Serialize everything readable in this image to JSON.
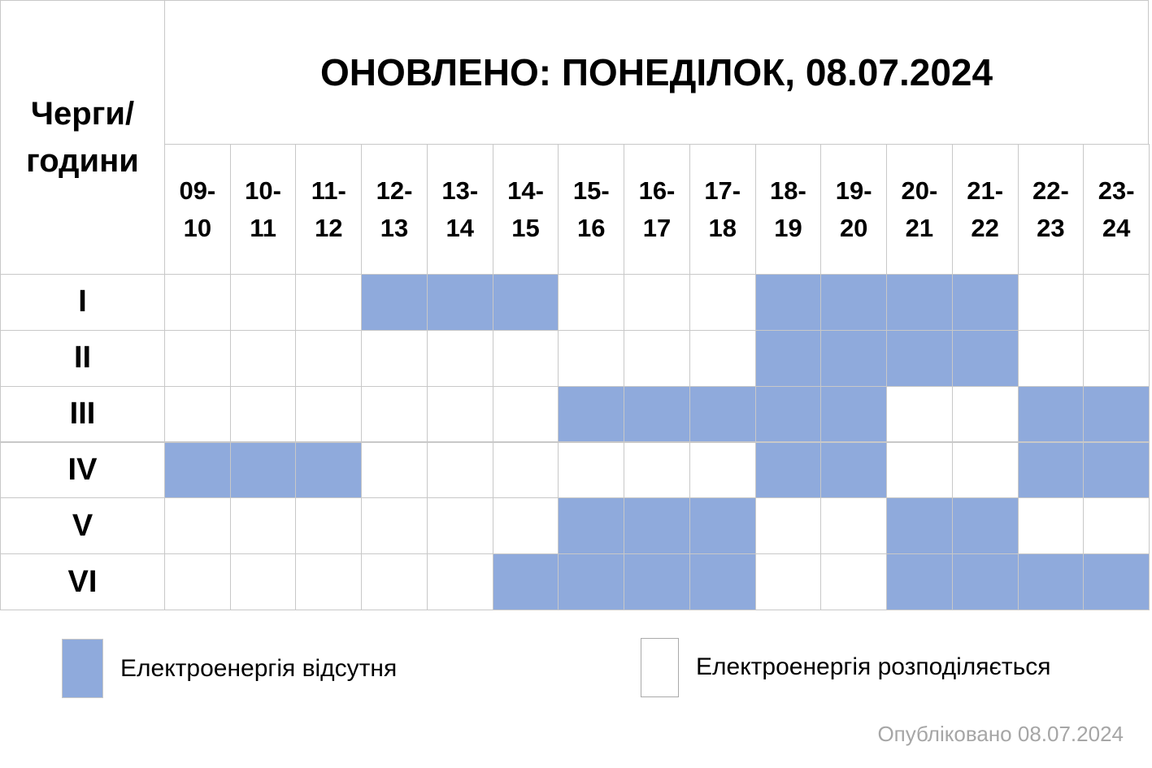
{
  "header": {
    "corner": "Черги/\nгодини",
    "title": "ОНОВЛЕНО: ПОНЕДІЛОК, 08.07.2024"
  },
  "hours": [
    "09-\n10",
    "10-\n11",
    "11-\n12",
    "12-\n13",
    "13-\n14",
    "14-\n15",
    "15-\n16",
    "16-\n17",
    "17-\n18",
    "18-\n19",
    "19-\n20",
    "20-\n21",
    "21-\n22",
    "22-\n23",
    "23-\n24"
  ],
  "rows": [
    {
      "label": "I",
      "outage": [
        false,
        false,
        false,
        true,
        true,
        true,
        false,
        false,
        false,
        true,
        true,
        true,
        true,
        false,
        false
      ]
    },
    {
      "label": "II",
      "outage": [
        false,
        false,
        false,
        false,
        false,
        false,
        false,
        false,
        false,
        true,
        true,
        true,
        true,
        false,
        false
      ]
    },
    {
      "label": "III",
      "outage": [
        false,
        false,
        false,
        false,
        false,
        false,
        true,
        true,
        true,
        true,
        true,
        false,
        false,
        true,
        true
      ]
    },
    {
      "label": "IV",
      "outage": [
        true,
        true,
        true,
        false,
        false,
        false,
        false,
        false,
        false,
        true,
        true,
        false,
        false,
        true,
        true
      ]
    },
    {
      "label": "V",
      "outage": [
        false,
        false,
        false,
        false,
        false,
        false,
        true,
        true,
        true,
        false,
        false,
        true,
        true,
        false,
        false
      ]
    },
    {
      "label": "VI",
      "outage": [
        false,
        false,
        false,
        false,
        false,
        true,
        true,
        true,
        true,
        false,
        false,
        true,
        true,
        true,
        true
      ]
    }
  ],
  "legend": {
    "off": {
      "label": "Електроенергія відсутня",
      "color": "#8faadc"
    },
    "on": {
      "label": "Електроенергія розподіляється",
      "color": "#ffffff"
    }
  },
  "footer": "Опубліковано 08.07.2024"
}
